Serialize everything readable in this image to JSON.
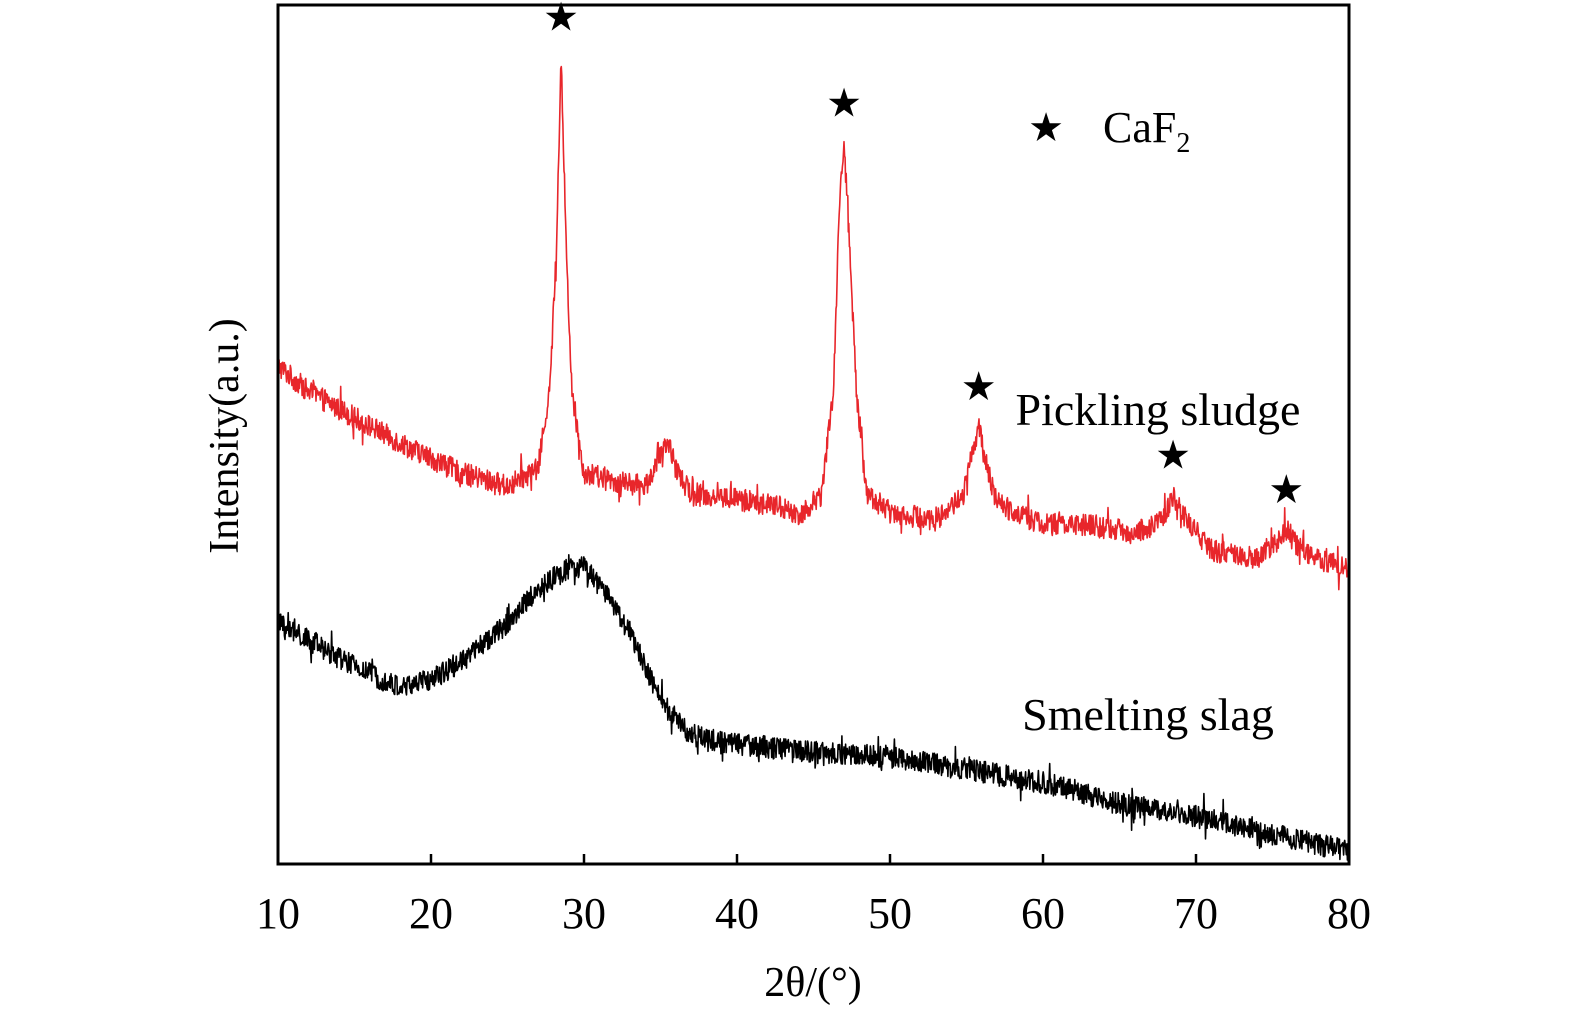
{
  "chart_data": {
    "type": "line",
    "xlabel": "2θ/(°)",
    "ylabel": "Intensity(a.u.)",
    "xlim": [
      10,
      80
    ],
    "ylim": [
      0,
      100
    ],
    "x_ticks": [
      "10",
      "20",
      "30",
      "40",
      "50",
      "60",
      "70",
      "80"
    ],
    "legend": {
      "position": "top-right",
      "marker": "★",
      "label": "CaF",
      "label_subscript": "2",
      "color": "#000000"
    },
    "series": [
      {
        "name": "Pickling sludge",
        "color": "#e8262b",
        "x": [
          10,
          12,
          15,
          18,
          22,
          25,
          27,
          27.8,
          28.2,
          28.5,
          28.8,
          29.2,
          30,
          32,
          34,
          35.2,
          35.6,
          36,
          37,
          40,
          43,
          44,
          45.5,
          46.3,
          46.7,
          47,
          47.3,
          47.8,
          48.5,
          50,
          53,
          54.8,
          55.4,
          55.8,
          56.2,
          57,
          60,
          63,
          66,
          67.8,
          68.5,
          69.2,
          71,
          74,
          75.4,
          75.9,
          76.6,
          78,
          80
        ],
        "y": [
          58,
          55,
          52,
          49,
          45.5,
          44,
          46,
          56,
          72,
          94,
          74,
          55,
          45.5,
          44.5,
          44,
          48,
          49,
          46,
          43,
          42.5,
          41.5,
          40.5,
          43,
          55,
          77,
          84,
          74,
          55,
          43,
          41,
          40,
          43,
          48,
          51,
          47,
          42,
          39.5,
          39.5,
          38.5,
          40,
          43,
          40.5,
          36.5,
          35.5,
          38,
          39,
          37,
          35.5,
          34.5
        ]
      },
      {
        "name": "Smelting slag",
        "color": "#000000",
        "x": [
          10,
          12,
          15,
          18,
          20,
          22,
          25,
          27,
          29,
          30,
          31,
          33,
          35,
          37,
          40,
          45,
          50,
          55,
          60,
          65,
          70,
          75,
          80
        ],
        "y": [
          28,
          26,
          23,
          20.5,
          21.5,
          23.5,
          28,
          32,
          34.5,
          34.5,
          32.5,
          27,
          19,
          15,
          14,
          13,
          12.5,
          11,
          9.5,
          7,
          5.5,
          3.5,
          1.5
        ]
      }
    ],
    "annotations": [
      {
        "marker": "★",
        "x": 28.5
      },
      {
        "marker": "★",
        "x": 47
      },
      {
        "marker": "★",
        "x": 55.8
      },
      {
        "marker": "★",
        "x": 68.5
      },
      {
        "marker": "★",
        "x": 75.9
      }
    ]
  }
}
